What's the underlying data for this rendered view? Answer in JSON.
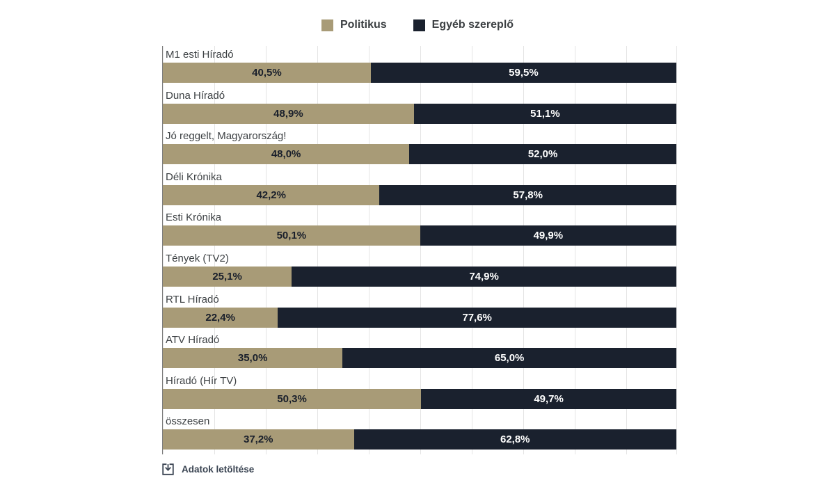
{
  "legend": {
    "items": [
      {
        "label": "Politikus",
        "color": "#a89b77"
      },
      {
        "label": "Egyéb szereplő",
        "color": "#1a212e"
      }
    ]
  },
  "chart_data": {
    "type": "bar",
    "orientation": "horizontal-stacked",
    "categories": [
      "M1 esti Híradó",
      "Duna Híradó",
      "Jó reggelt, Magyarország!",
      "Déli Krónika",
      "Esti Krónika",
      "Tények (TV2)",
      "RTL Híradó",
      "ATV Híradó",
      "Híradó (Hír TV)",
      "összesen"
    ],
    "series": [
      {
        "name": "Politikus",
        "color": "#a89b77",
        "values": [
          40.5,
          48.9,
          48.0,
          42.2,
          50.1,
          25.1,
          22.4,
          35.0,
          50.3,
          37.2
        ],
        "labels": [
          "40,5%",
          "48,9%",
          "48,0%",
          "42,2%",
          "50,1%",
          "25,1%",
          "22,4%",
          "35,0%",
          "50,3%",
          "37,2%"
        ]
      },
      {
        "name": "Egyéb szereplő",
        "color": "#1a212e",
        "values": [
          59.5,
          51.1,
          52.0,
          57.8,
          49.9,
          74.9,
          77.6,
          65.0,
          49.7,
          62.8
        ],
        "labels": [
          "59,5%",
          "51,1%",
          "52,0%",
          "57,8%",
          "49,9%",
          "74,9%",
          "77,6%",
          "65,0%",
          "49,7%",
          "62,8%"
        ]
      }
    ],
    "xlim": [
      0,
      100
    ],
    "grid": "vertical gridlines every 10%",
    "legend_position": "top-center",
    "title": "",
    "xlabel": "",
    "ylabel": ""
  },
  "footer": {
    "download_label": "Adatok letöltése"
  }
}
